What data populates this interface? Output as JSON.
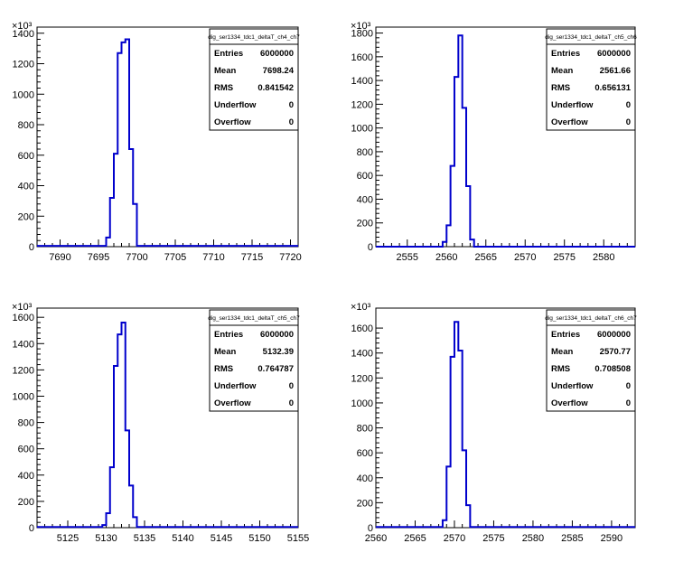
{
  "chart_data": [
    {
      "type": "histogram",
      "exponent_label": "×10³",
      "x_range": [
        7687,
        7721
      ],
      "x_ticks": [
        7690,
        7695,
        7700,
        7705,
        7710,
        7715,
        7720
      ],
      "y_range": [
        0,
        1440
      ],
      "y_ticks": [
        0,
        200,
        400,
        600,
        800,
        1000,
        1200,
        1400
      ],
      "bin_width": 0.5,
      "bins_x": [
        7696,
        7696.5,
        7697,
        7697.5,
        7698,
        7698.5,
        7699,
        7699.5
      ],
      "bins_y": [
        60,
        320,
        610,
        1270,
        1340,
        1360,
        640,
        280
      ],
      "tail_y": 5,
      "stats": {
        "title": "dig_ser1334_tdc1_deltaT_ch4_ch7",
        "rows": [
          {
            "label": "Entries",
            "value": "6000000"
          },
          {
            "label": "Mean",
            "value": "7698.24"
          },
          {
            "label": "RMS",
            "value": "0.841542"
          },
          {
            "label": "Underflow",
            "value": "0"
          },
          {
            "label": "Overflow",
            "value": "0"
          }
        ]
      }
    },
    {
      "type": "histogram",
      "exponent_label": "×10³",
      "x_range": [
        2551,
        2584
      ],
      "x_ticks": [
        2555,
        2560,
        2565,
        2570,
        2575,
        2580
      ],
      "y_range": [
        0,
        1850
      ],
      "y_ticks": [
        0,
        200,
        400,
        600,
        800,
        1000,
        1200,
        1400,
        1600,
        1800
      ],
      "bin_width": 0.5,
      "bins_x": [
        2559.5,
        2560,
        2560.5,
        2561,
        2561.5,
        2562,
        2562.5,
        2563
      ],
      "bins_y": [
        40,
        180,
        680,
        1430,
        1780,
        1170,
        510,
        60
      ],
      "tail_y": 0,
      "stats": {
        "title": "dig_ser1334_tdc1_deltaT_ch5_ch6",
        "rows": [
          {
            "label": "Entries",
            "value": "6000000"
          },
          {
            "label": "Mean",
            "value": "2561.66"
          },
          {
            "label": "RMS",
            "value": "0.656131"
          },
          {
            "label": "Underflow",
            "value": "0"
          },
          {
            "label": "Overflow",
            "value": "0"
          }
        ]
      }
    },
    {
      "type": "histogram",
      "exponent_label": "×10³",
      "x_range": [
        5121,
        5155
      ],
      "x_ticks": [
        5125,
        5130,
        5135,
        5140,
        5145,
        5150,
        5155
      ],
      "y_range": [
        0,
        1670
      ],
      "y_ticks": [
        0,
        200,
        400,
        600,
        800,
        1000,
        1200,
        1400,
        1600
      ],
      "bin_width": 0.5,
      "bins_x": [
        5129.5,
        5130,
        5130.5,
        5131,
        5131.5,
        5132,
        5132.5,
        5133,
        5133.5
      ],
      "bins_y": [
        20,
        110,
        460,
        1230,
        1470,
        1560,
        740,
        320,
        80
      ],
      "tail_y": 5,
      "stats": {
        "title": "dig_ser1334_tdc1_deltaT_ch5_ch7",
        "rows": [
          {
            "label": "Entries",
            "value": "6000000"
          },
          {
            "label": "Mean",
            "value": "5132.39"
          },
          {
            "label": "RMS",
            "value": "0.764787"
          },
          {
            "label": "Underflow",
            "value": "0"
          },
          {
            "label": "Overflow",
            "value": "0"
          }
        ]
      }
    },
    {
      "type": "histogram",
      "exponent_label": "×10³",
      "x_range": [
        2560,
        2593
      ],
      "x_ticks": [
        2560,
        2565,
        2570,
        2575,
        2580,
        2585,
        2590
      ],
      "y_range": [
        0,
        1760
      ],
      "y_ticks": [
        0,
        200,
        400,
        600,
        800,
        1000,
        1200,
        1400,
        1600
      ],
      "bin_width": 0.5,
      "bins_x": [
        2568.5,
        2569,
        2569.5,
        2570,
        2570.5,
        2571,
        2571.5,
        2572
      ],
      "bins_y": [
        60,
        490,
        1370,
        1650,
        1420,
        620,
        180,
        5
      ],
      "tail_y": 5,
      "stats": {
        "title": "dig_ser1334_tdc1_deltaT_ch6_ch7",
        "rows": [
          {
            "label": "Entries",
            "value": "6000000"
          },
          {
            "label": "Mean",
            "value": "2570.77"
          },
          {
            "label": "RMS",
            "value": "0.708508"
          },
          {
            "label": "Underflow",
            "value": "0"
          },
          {
            "label": "Overflow",
            "value": "0"
          }
        ]
      }
    }
  ]
}
